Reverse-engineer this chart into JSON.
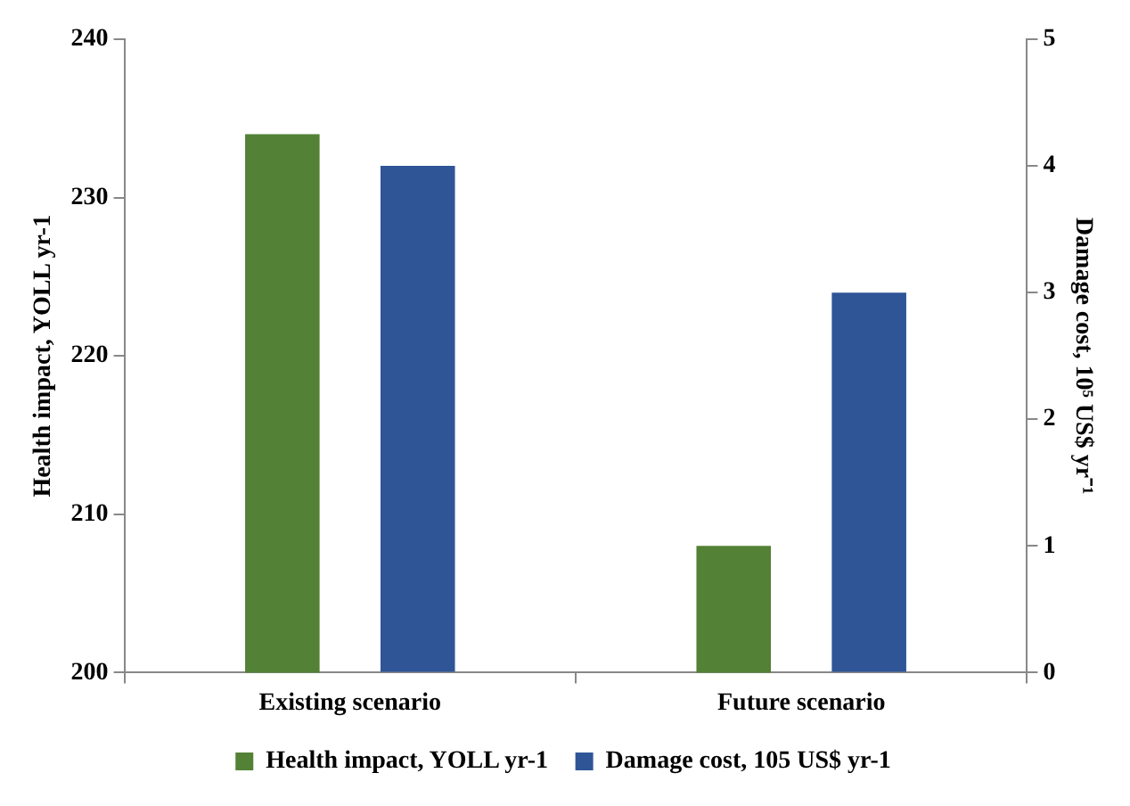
{
  "chart_data": {
    "type": "bar",
    "categories": [
      "Existing scenario",
      "Future scenario"
    ],
    "series": [
      {
        "name": "Health impact, YOLL yr-1",
        "color": "#538135",
        "values": [
          234,
          208
        ]
      },
      {
        "name": "Damage cost, 105 US$ yr-1",
        "color": "#2f5597",
        "values": [
          4.0,
          3.0
        ],
        "axis": "y2"
      }
    ],
    "ylabel": "Health impact, YOLL yr-1",
    "y2label": "Damage cost, 10⁵ US$ yr⁻¹",
    "ylim": [
      200,
      240
    ],
    "yticks": [
      200,
      210,
      220,
      230,
      240
    ],
    "y2lim": [
      0,
      5
    ],
    "y2ticks": [
      0,
      1,
      2,
      3,
      4,
      5
    ],
    "grid": false,
    "legend": "bottom"
  }
}
